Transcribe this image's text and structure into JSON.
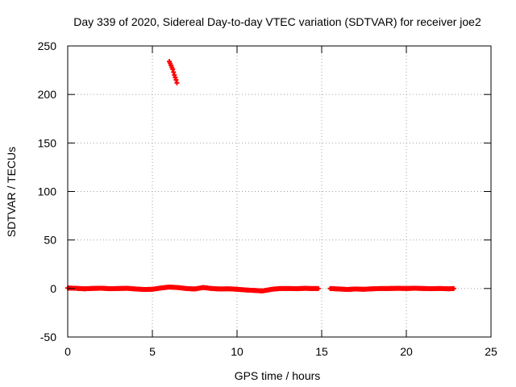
{
  "chart_data": {
    "type": "scatter",
    "title": "Day 339 of 2020, Sidereal Day-to-day VTEC variation (SDTVAR) for receiver joe2",
    "xlabel": "GPS time / hours",
    "ylabel": "SDTVAR / TECUs",
    "xlim": [
      0,
      25
    ],
    "ylim": [
      -50,
      250
    ],
    "xticks": [
      0,
      5,
      10,
      15,
      20,
      25
    ],
    "yticks": [
      -50,
      0,
      50,
      100,
      150,
      200,
      250
    ],
    "grid": true,
    "legend": "none",
    "marker_color": "#ff0000",
    "series": [
      {
        "values": [
          [
            0.0,
            0.5
          ],
          [
            0.5,
            0.2
          ],
          [
            1.0,
            -0.3
          ],
          [
            1.5,
            0.1
          ],
          [
            2.0,
            0.3
          ],
          [
            2.5,
            -0.2
          ],
          [
            3.0,
            0.0
          ],
          [
            3.5,
            0.2
          ],
          [
            4.0,
            -0.5
          ],
          [
            4.5,
            -1.0
          ],
          [
            5.0,
            -0.8
          ],
          [
            5.5,
            0.5
          ],
          [
            6.0,
            1.5
          ],
          [
            6.5,
            1.0
          ],
          [
            7.0,
            0.0
          ],
          [
            7.5,
            -0.5
          ],
          [
            8.0,
            1.0
          ],
          [
            8.5,
            0.0
          ],
          [
            9.0,
            -0.5
          ],
          [
            9.5,
            -0.3
          ],
          [
            10.0,
            -0.8
          ],
          [
            10.5,
            -1.5
          ],
          [
            11.0,
            -2.0
          ],
          [
            11.5,
            -2.5
          ],
          [
            12.0,
            -1.0
          ],
          [
            12.5,
            0.0
          ],
          [
            13.0,
            0.0
          ],
          [
            13.5,
            -0.2
          ],
          [
            14.0,
            0.2
          ],
          [
            14.3,
            0.0
          ],
          [
            14.8,
            0.0
          ],
          [
            15.5,
            0.0
          ],
          [
            16.0,
            -0.5
          ],
          [
            16.5,
            -1.0
          ],
          [
            17.0,
            -0.5
          ],
          [
            17.5,
            -0.8
          ],
          [
            18.0,
            -0.3
          ],
          [
            18.5,
            0.0
          ],
          [
            19.0,
            0.0
          ],
          [
            19.5,
            0.2
          ],
          [
            20.0,
            0.0
          ],
          [
            20.5,
            0.3
          ],
          [
            21.0,
            0.0
          ],
          [
            21.5,
            -0.2
          ],
          [
            22.0,
            0.0
          ],
          [
            22.5,
            -0.3
          ],
          [
            22.8,
            0.0
          ],
          [
            6.0,
            234
          ],
          [
            6.1,
            230
          ],
          [
            6.2,
            226
          ],
          [
            6.3,
            220
          ],
          [
            6.4,
            215
          ],
          [
            6.45,
            212
          ]
        ]
      }
    ]
  }
}
